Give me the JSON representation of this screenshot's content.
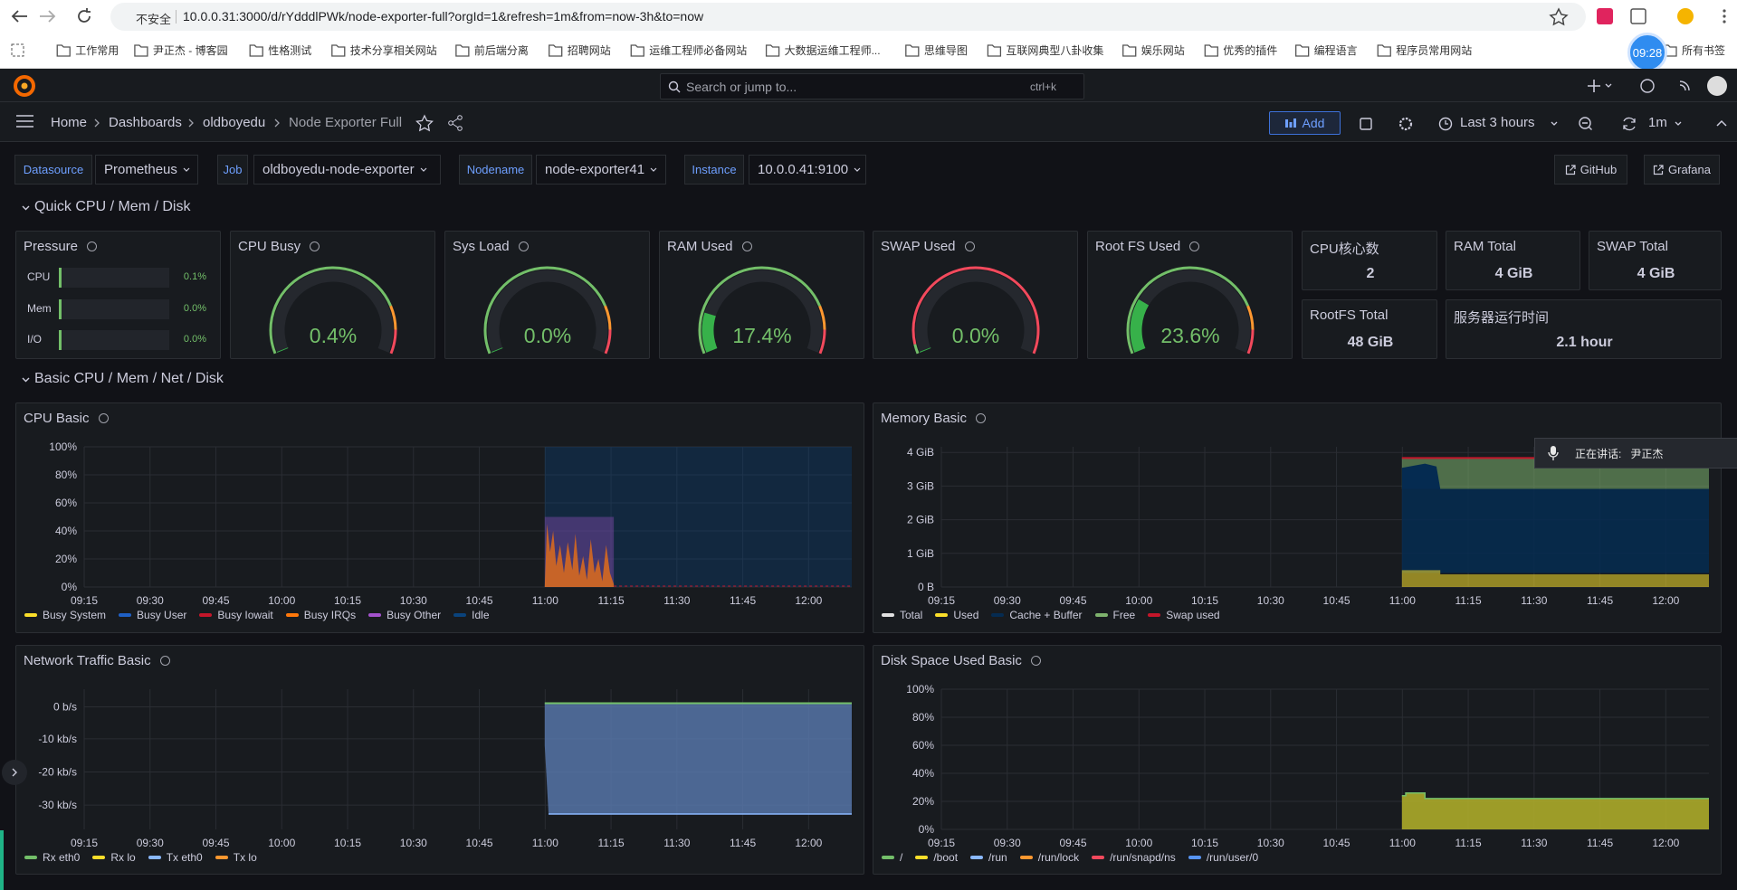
{
  "browser": {
    "security": "不安全",
    "url": "10.0.0.31:3000/d/rYdddlPWk/node-exporter-full?orgId=1&refresh=1m&from=now-3h&to=now",
    "bookmarks": [
      "工作常用",
      "尹正杰 - 博客园",
      "性格测试",
      "技术分享相关网站",
      "前后端分离",
      "招聘网站",
      "运维工程师必备网站",
      "大数据运维工程师...",
      "思维导图",
      "互联网典型八卦收集",
      "娱乐网站",
      "优秀的插件",
      "编程语言",
      "程序员常用网站"
    ],
    "all_bookmarks": "所有书签",
    "clock": "09:28"
  },
  "topbar": {
    "search": "Search or jump to...",
    "shortcut": "ctrl+k"
  },
  "toolbar": {
    "breadcrumbs": [
      "Home",
      "Dashboards",
      "oldboyedu",
      "Node Exporter Full"
    ],
    "add": "Add",
    "time_range": "Last 3 hours",
    "refresh": "1m"
  },
  "variables": [
    {
      "label": "Datasource",
      "value": "Prometheus"
    },
    {
      "label": "Job",
      "value": "oldboyedu-node-exporter"
    },
    {
      "label": "Nodename",
      "value": "node-exporter41"
    },
    {
      "label": "Instance",
      "value": "10.0.0.41:9100"
    }
  ],
  "links": [
    "GitHub",
    "Grafana"
  ],
  "rows": [
    "Quick CPU / Mem / Disk",
    "Basic CPU / Mem / Net / Disk"
  ],
  "pressure": {
    "title": "Pressure",
    "items": [
      {
        "label": "CPU",
        "value": "0.1%"
      },
      {
        "label": "Mem",
        "value": "0.0%"
      },
      {
        "label": "I/O",
        "value": "0.0%"
      }
    ]
  },
  "gauges": [
    {
      "title": "CPU Busy",
      "value": 0.4,
      "value_label": "0.4%"
    },
    {
      "title": "Sys Load",
      "value": 0.0,
      "value_label": "0.0%"
    },
    {
      "title": "RAM Used",
      "value": 17.4,
      "value_label": "17.4%"
    },
    {
      "title": "SWAP Used",
      "value": 0.0,
      "value_label": "0.0%"
    },
    {
      "title": "Root FS Used",
      "value": 23.6,
      "value_label": "23.6%"
    }
  ],
  "stats": [
    {
      "title": "CPU核心数",
      "value": "2"
    },
    {
      "title": "RAM Total",
      "value": "4 GiB"
    },
    {
      "title": "SWAP Total",
      "value": "4 GiB"
    },
    {
      "title": "RootFS Total",
      "value": "48 GiB"
    },
    {
      "title": "服务器运行时间",
      "value": "2.1 hour"
    }
  ],
  "charts": [
    {
      "title": "CPU Basic",
      "yticks": [
        "100%",
        "80%",
        "60%",
        "40%",
        "20%",
        "0%"
      ],
      "xticks": [
        "09:15",
        "09:30",
        "09:45",
        "10:00",
        "10:15",
        "10:30",
        "10:45",
        "11:00",
        "11:15",
        "11:30",
        "11:45",
        "12:00"
      ],
      "legend": [
        {
          "name": "Busy System",
          "color": "#fade2a"
        },
        {
          "name": "Busy User",
          "color": "#1f60c4"
        },
        {
          "name": "Busy Iowait",
          "color": "#c4162a"
        },
        {
          "name": "Busy IRQs",
          "color": "#ff780a"
        },
        {
          "name": "Busy Other",
          "color": "#a352cc"
        },
        {
          "name": "Idle",
          "color": "#0a437c"
        }
      ]
    },
    {
      "title": "Memory Basic",
      "yticks": [
        "4 GiB",
        "3 GiB",
        "2 GiB",
        "1 GiB",
        "0 B"
      ],
      "xticks": [
        "09:15",
        "09:30",
        "09:45",
        "10:00",
        "10:15",
        "10:30",
        "10:45",
        "11:00",
        "11:15",
        "11:30",
        "11:45",
        "12:00"
      ],
      "legend": [
        {
          "name": "Total",
          "color": "#e0e0e0"
        },
        {
          "name": "Used",
          "color": "#fade2a"
        },
        {
          "name": "Cache + Buffer",
          "color": "#052b51"
        },
        {
          "name": "Free",
          "color": "#7eb26d"
        },
        {
          "name": "Swap used",
          "color": "#c4162a"
        }
      ]
    },
    {
      "title": "Network Traffic Basic",
      "yticks": [
        "0 b/s",
        "-10 kb/s",
        "-20 kb/s",
        "-30 kb/s"
      ],
      "xticks": [
        "09:15",
        "09:30",
        "09:45",
        "10:00",
        "10:15",
        "10:30",
        "10:45",
        "11:00",
        "11:15",
        "11:30",
        "11:45",
        "12:00"
      ],
      "legend": [
        {
          "name": "Rx eth0",
          "color": "#73bf69"
        },
        {
          "name": "Rx lo",
          "color": "#fade2a"
        },
        {
          "name": "Tx eth0",
          "color": "#8ab8ff"
        },
        {
          "name": "Tx lo",
          "color": "#ff9830"
        }
      ]
    },
    {
      "title": "Disk Space Used Basic",
      "yticks": [
        "100%",
        "80%",
        "60%",
        "40%",
        "20%",
        "0%"
      ],
      "xticks": [
        "09:15",
        "09:30",
        "09:45",
        "10:00",
        "10:15",
        "10:30",
        "10:45",
        "11:00",
        "11:15",
        "11:30",
        "11:45",
        "12:00"
      ],
      "legend": [
        {
          "name": "/",
          "color": "#73bf69"
        },
        {
          "name": "/boot",
          "color": "#fade2a"
        },
        {
          "name": "/run",
          "color": "#8ab8ff"
        },
        {
          "name": "/run/lock",
          "color": "#ff9830"
        },
        {
          "name": "/run/snapd/ns",
          "color": "#f2495c"
        },
        {
          "name": "/run/user/0",
          "color": "#5794f2"
        }
      ]
    }
  ],
  "notification": {
    "label": "正在讲话:",
    "speaker": "尹正杰"
  }
}
